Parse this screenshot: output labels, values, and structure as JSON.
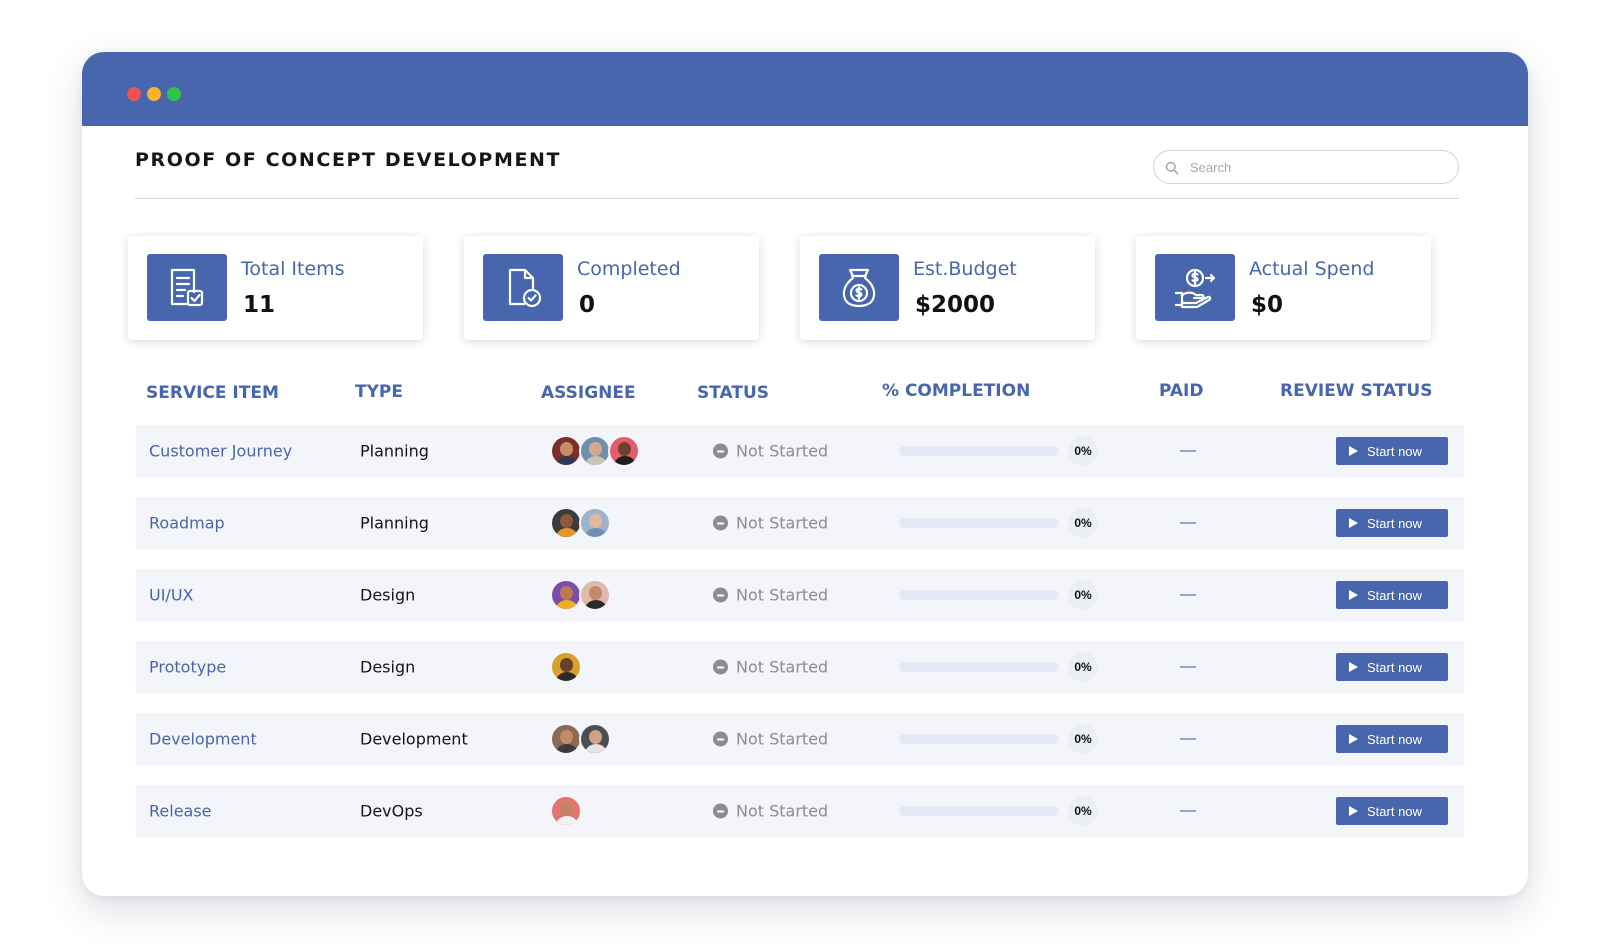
{
  "colors": {
    "brand": "#4866ae",
    "window_dot_red": "#ef5350",
    "window_dot_yellow": "#f5b42a",
    "window_dot_green": "#2fc44a"
  },
  "page": {
    "title": "PROOF OF CONCEPT DEVELOPMENT"
  },
  "search": {
    "placeholder": "Search",
    "icon": "search-icon"
  },
  "cards": [
    {
      "label": "Total Items",
      "value": "11",
      "icon": "checklist-document-icon"
    },
    {
      "label": "Completed",
      "value": "0",
      "icon": "document-check-icon"
    },
    {
      "label": "Est.Budget",
      "value": "$2000",
      "icon": "money-bag-icon"
    },
    {
      "label": "Actual Spend",
      "value": "$0",
      "icon": "hand-coin-icon"
    }
  ],
  "table": {
    "headers": {
      "service_item": "SERVICE ITEM",
      "type": "TYPE",
      "assignee": "ASSIGNEE",
      "status": "STATUS",
      "completion": "% COMPLETION",
      "paid": "PAID",
      "review_status": "REVIEW STATUS"
    },
    "rows": [
      {
        "service_item": "Customer Journey",
        "type": "Planning",
        "assignee_count": 3,
        "status": "Not Started",
        "progress": 0,
        "completion": "0%",
        "paid": "—",
        "review": "Start now"
      },
      {
        "service_item": "Roadmap",
        "type": "Planning",
        "assignee_count": 2,
        "status": "Not Started",
        "progress": 0,
        "completion": "0%",
        "paid": "—",
        "review": "Start now"
      },
      {
        "service_item": "UI/UX",
        "type": "Design",
        "assignee_count": 2,
        "status": "Not Started",
        "progress": 0,
        "completion": "0%",
        "paid": "—",
        "review": "Start now"
      },
      {
        "service_item": "Prototype",
        "type": "Design",
        "assignee_count": 1,
        "status": "Not Started",
        "progress": 0,
        "completion": "0%",
        "paid": "—",
        "review": "Start now"
      },
      {
        "service_item": "Development",
        "type": "Development",
        "assignee_count": 2,
        "status": "Not Started",
        "progress": 0,
        "completion": "0%",
        "paid": "—",
        "review": "Start now"
      },
      {
        "service_item": "Release",
        "type": "DevOps",
        "assignee_count": 1,
        "status": "Not Started",
        "progress": 0,
        "completion": "0%",
        "paid": "—",
        "review": "Start now"
      }
    ]
  }
}
